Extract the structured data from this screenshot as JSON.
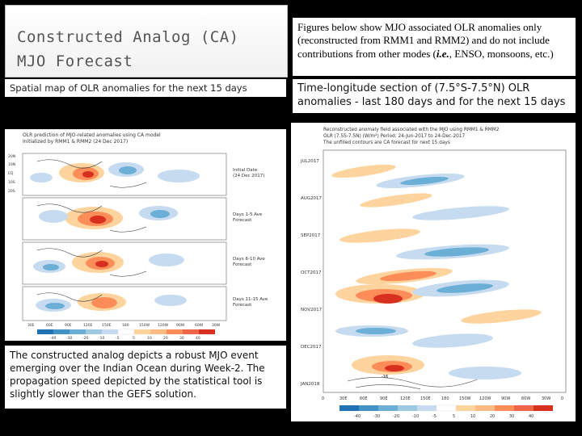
{
  "title": {
    "line1": "Constructed Analog (CA)",
    "line2": "MJO Forecast"
  },
  "left_subtitle": "Spatial map of OLR anomalies for the next 15 days",
  "description": {
    "part1": "Figures below show MJO associated OLR anomalies only (reconstructed from RMM1 and RMM2) and do not include contributions from other modes (",
    "ie": "i.e.",
    "part2": ", ENSO, monsoons, etc.)"
  },
  "right_subtitle": "Time-longitude section of (7.5°S-7.5°N) OLR anomalies - last 180 days and for the next 15 days",
  "left_figure": {
    "header_line1": "OLR prediction of MJO-related anomalies using CA model",
    "header_line2": "Initialized by RMM1 & RMM2 (24 Dec 2017)",
    "panels": [
      {
        "line1": "Initial Date",
        "line2": "(24 Dec 2017)"
      },
      {
        "line1": "Days 1-5 Ave",
        "line2": "Forecast"
      },
      {
        "line1": "Days 6-10 Ave",
        "line2": "Forecast"
      },
      {
        "line1": "Days 11-15 Ave",
        "line2": "Forecast"
      }
    ],
    "lat_ticks": [
      "20N",
      "10N",
      "EQ",
      "10S",
      "20S"
    ],
    "lon_ticks": [
      "30E",
      "60E",
      "90E",
      "120E",
      "150E",
      "180",
      "150W",
      "120W",
      "90W",
      "60W",
      "30W"
    ],
    "colorbar_ticks": [
      "-40",
      "-30",
      "-20",
      "-10",
      "-5",
      "5",
      "10",
      "20",
      "30",
      "40"
    ]
  },
  "right_figure": {
    "header_line1": "Reconstructed anomaly field associated with the MJO using RMM1 & RMM2",
    "header_line2": "OLR (7.5S-7.5N) (W/m²) Period: 24-Jun-2017 to 24-Dec-2017",
    "header_line3": "The unfilled contours are CA forecast for next 15 days",
    "months": [
      "JUL2017",
      "AUG2017",
      "SEP2017",
      "OCT2017",
      "NOV2017",
      "DEC2017",
      "JAN2018"
    ],
    "lon_ticks": [
      "0",
      "30E",
      "60E",
      "90E",
      "120E",
      "150E",
      "180",
      "150W",
      "120W",
      "90W",
      "60W",
      "30W",
      "0"
    ],
    "colorbar_ticks": [
      "-40",
      "-30",
      "-20",
      "-10",
      "-5",
      "5",
      "10",
      "20",
      "30",
      "40"
    ],
    "contour_label": "-16"
  },
  "bottom_text": "The constructed analog depicts a robust MJO event emerging over the Indian Ocean during Week-2. The propagation speed depicted by the statistical tool is slightly slower than the GEFS solution.",
  "colors": {
    "negative_strong": "#d7301f",
    "negative": "#fc8d59",
    "negative_light": "#fdd49e",
    "positive_light": "#c6dbef",
    "positive": "#6baed6",
    "positive_strong": "#2171b5"
  }
}
